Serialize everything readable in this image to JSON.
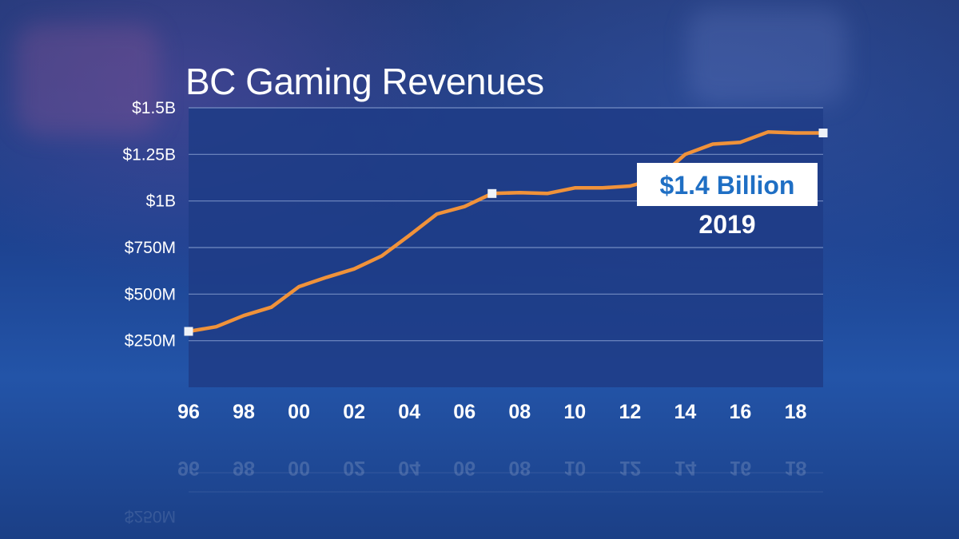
{
  "colors": {
    "line": "#f0923a",
    "plot_area": "#1f3c86",
    "grid": "#8fa6d6",
    "marker": "#eef2f8",
    "callout_bg": "#ffffff",
    "callout_text": "#1f6fc4"
  },
  "callout": {
    "value": "$1.4 Billion",
    "year": "2019"
  },
  "chart_data": {
    "type": "line",
    "title": "BC Gaming Revenues",
    "xlabel": "",
    "ylabel": "",
    "x": [
      1996,
      1997,
      1998,
      1999,
      2000,
      2001,
      2002,
      2003,
      2004,
      2005,
      2006,
      2007,
      2008,
      2009,
      2010,
      2011,
      2012,
      2013,
      2014,
      2015,
      2016,
      2017,
      2018,
      2019
    ],
    "xlim": [
      1996,
      2019
    ],
    "x_tick_values": [
      1996,
      1998,
      2000,
      2002,
      2004,
      2006,
      2008,
      2010,
      2012,
      2014,
      2016,
      2018
    ],
    "x_tick_labels": [
      "96",
      "98",
      "00",
      "02",
      "04",
      "06",
      "08",
      "10",
      "12",
      "14",
      "16",
      "18"
    ],
    "series": [
      {
        "values": [
          300,
          325,
          385,
          430,
          540,
          590,
          635,
          705,
          815,
          930,
          970,
          1040,
          1045,
          1040,
          1070,
          1070,
          1080,
          1120,
          1250,
          1305,
          1315,
          1370,
          1365,
          1365
        ]
      }
    ],
    "ylim": [
      0,
      1500
    ],
    "y_tick_values": [
      250,
      500,
      750,
      1000,
      1250,
      1500
    ],
    "y_tick_labels": [
      "$250M",
      "$500M",
      "$750M",
      "$1B",
      "$1.25B",
      "$1.5B"
    ],
    "grid": true,
    "markers_at": [
      1996,
      2007,
      2019
    ],
    "annotation": {
      "x": 2019,
      "text": "$1.4 Billion",
      "subtext": "2019"
    }
  }
}
